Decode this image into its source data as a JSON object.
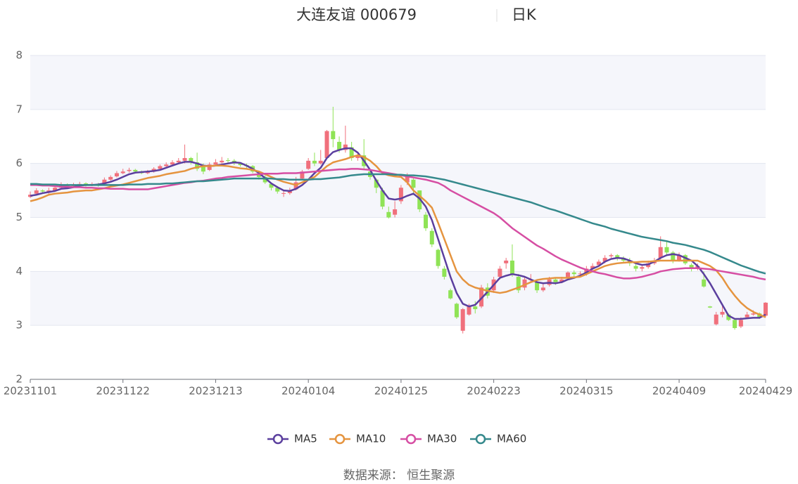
{
  "chart_data": {
    "type": "candlestick",
    "title": "大连友谊 000679",
    "period": "日K",
    "source": "数据来源：  恒生聚源",
    "categories": [
      "20231101",
      null,
      null,
      null,
      null,
      null,
      null,
      null,
      null,
      null,
      null,
      null,
      null,
      null,
      null,
      "20231122",
      null,
      null,
      null,
      null,
      null,
      null,
      null,
      null,
      null,
      null,
      null,
      null,
      null,
      null,
      "20231213",
      null,
      null,
      null,
      null,
      null,
      null,
      null,
      null,
      null,
      null,
      null,
      null,
      null,
      null,
      "20240104",
      null,
      null,
      null,
      null,
      null,
      null,
      null,
      null,
      null,
      null,
      null,
      null,
      null,
      null,
      "20240125",
      null,
      null,
      null,
      null,
      null,
      null,
      null,
      null,
      null,
      null,
      null,
      null,
      null,
      null,
      "20240223",
      null,
      null,
      null,
      null,
      null,
      null,
      null,
      null,
      null,
      null,
      null,
      null,
      null,
      null,
      "20240315",
      null,
      null,
      null,
      null,
      null,
      null,
      null,
      null,
      null,
      null,
      null,
      null,
      null,
      null,
      "20240409",
      null,
      null,
      null,
      null,
      null,
      null,
      null,
      null,
      null,
      null,
      null,
      null,
      null,
      "20240429"
    ],
    "values": [
      [
        5.38,
        5.42,
        5.36,
        5.48
      ],
      [
        5.44,
        5.5,
        5.42,
        5.54
      ],
      [
        5.5,
        5.48,
        5.45,
        5.52
      ],
      [
        5.46,
        5.5,
        5.44,
        5.55
      ],
      [
        5.5,
        5.55,
        5.48,
        5.6
      ],
      [
        5.55,
        5.6,
        5.52,
        5.65
      ],
      [
        5.6,
        5.58,
        5.55,
        5.63
      ],
      [
        5.58,
        5.6,
        5.55,
        5.64
      ],
      [
        5.6,
        5.62,
        5.57,
        5.66
      ],
      [
        5.63,
        5.6,
        5.57,
        5.65
      ],
      [
        5.6,
        5.62,
        5.58,
        5.65
      ],
      [
        5.62,
        5.6,
        5.57,
        5.64
      ],
      [
        5.62,
        5.7,
        5.6,
        5.74
      ],
      [
        5.7,
        5.75,
        5.68,
        5.78
      ],
      [
        5.76,
        5.82,
        5.74,
        5.86
      ],
      [
        5.82,
        5.85,
        5.8,
        5.9
      ],
      [
        5.86,
        5.88,
        5.83,
        5.92
      ],
      [
        5.88,
        5.85,
        5.82,
        5.9
      ],
      [
        5.85,
        5.82,
        5.8,
        5.87
      ],
      [
        5.82,
        5.85,
        5.8,
        5.88
      ],
      [
        5.85,
        5.9,
        5.83,
        5.93
      ],
      [
        5.9,
        5.95,
        5.88,
        5.98
      ],
      [
        5.95,
        5.98,
        5.92,
        6.02
      ],
      [
        5.98,
        6.02,
        5.95,
        6.06
      ],
      [
        6.02,
        6.05,
        6.0,
        6.1
      ],
      [
        6.05,
        6.1,
        6.0,
        6.35
      ],
      [
        6.1,
        6.02,
        5.98,
        6.12
      ],
      [
        6.02,
        5.9,
        5.86,
        6.2
      ],
      [
        5.95,
        5.85,
        5.8,
        6.0
      ],
      [
        5.88,
        5.98,
        5.86,
        6.02
      ],
      [
        5.98,
        6.02,
        5.95,
        6.08
      ],
      [
        6.02,
        6.05,
        6.0,
        6.12
      ],
      [
        6.06,
        6.05,
        6.0,
        6.1
      ],
      [
        6.05,
        6.0,
        5.97,
        6.08
      ],
      [
        6.0,
        5.97,
        5.94,
        6.02
      ],
      [
        5.97,
        5.95,
        5.9,
        6.0
      ],
      [
        5.95,
        5.85,
        5.82,
        5.97
      ],
      [
        5.8,
        5.75,
        5.7,
        5.82
      ],
      [
        5.75,
        5.65,
        5.62,
        5.78
      ],
      [
        5.62,
        5.55,
        5.5,
        5.65
      ],
      [
        5.55,
        5.48,
        5.44,
        5.58
      ],
      [
        5.45,
        5.45,
        5.38,
        5.5
      ],
      [
        5.45,
        5.5,
        5.42,
        5.55
      ],
      [
        5.52,
        5.65,
        5.5,
        5.75
      ],
      [
        5.72,
        5.85,
        5.7,
        5.88
      ],
      [
        5.9,
        6.05,
        5.88,
        6.1
      ],
      [
        6.05,
        6.0,
        5.95,
        6.2
      ],
      [
        6.0,
        6.05,
        5.98,
        6.25
      ],
      [
        6.1,
        6.6,
        6.1,
        6.62
      ],
      [
        6.6,
        6.45,
        6.3,
        7.05
      ],
      [
        6.4,
        6.25,
        6.2,
        6.5
      ],
      [
        6.25,
        6.35,
        6.2,
        6.7
      ],
      [
        6.3,
        6.1,
        6.05,
        6.4
      ],
      [
        6.1,
        6.15,
        6.05,
        6.2
      ],
      [
        6.15,
        5.95,
        5.9,
        6.45
      ],
      [
        5.85,
        5.75,
        5.7,
        5.9
      ],
      [
        5.7,
        5.55,
        5.45,
        5.72
      ],
      [
        5.5,
        5.2,
        5.15,
        5.55
      ],
      [
        5.1,
        5.0,
        4.98,
        5.2
      ],
      [
        5.05,
        5.15,
        5.0,
        5.3
      ],
      [
        5.3,
        5.55,
        5.25,
        5.6
      ],
      [
        5.65,
        5.75,
        5.6,
        5.82
      ],
      [
        5.7,
        5.55,
        5.45,
        5.72
      ],
      [
        5.5,
        5.15,
        5.1,
        5.5
      ],
      [
        5.05,
        4.8,
        4.75,
        5.1
      ],
      [
        4.75,
        4.5,
        4.45,
        4.8
      ],
      [
        4.4,
        4.1,
        4.05,
        4.42
      ],
      [
        4.05,
        3.9,
        3.85,
        4.1
      ],
      [
        3.65,
        3.5,
        3.48,
        3.68
      ],
      [
        3.4,
        3.15,
        3.12,
        3.42
      ],
      [
        2.9,
        3.3,
        2.85,
        3.32
      ],
      [
        3.2,
        3.35,
        3.18,
        3.4
      ],
      [
        3.35,
        3.3,
        3.22,
        3.45
      ],
      [
        3.35,
        3.7,
        3.32,
        3.75
      ],
      [
        3.7,
        3.55,
        3.5,
        3.78
      ],
      [
        3.65,
        3.85,
        3.6,
        3.9
      ],
      [
        3.9,
        4.05,
        3.85,
        4.1
      ],
      [
        4.15,
        4.2,
        4.05,
        4.25
      ],
      [
        4.2,
        3.95,
        3.9,
        4.5
      ],
      [
        3.9,
        3.65,
        3.6,
        3.95
      ],
      [
        3.7,
        3.85,
        3.65,
        3.9
      ],
      [
        3.85,
        3.85,
        3.8,
        3.95
      ],
      [
        3.8,
        3.65,
        3.6,
        3.85
      ],
      [
        3.65,
        3.7,
        3.62,
        3.78
      ],
      [
        3.75,
        3.85,
        3.72,
        3.9
      ],
      [
        3.85,
        3.8,
        3.75,
        3.88
      ],
      [
        3.8,
        3.85,
        3.78,
        3.9
      ],
      [
        3.88,
        3.98,
        3.85,
        4.0
      ],
      [
        3.98,
        3.95,
        3.9,
        4.02
      ],
      [
        3.95,
        3.96,
        3.92,
        4.0
      ],
      [
        3.96,
        4.05,
        3.92,
        4.1
      ],
      [
        4.05,
        4.1,
        4.02,
        4.15
      ],
      [
        4.12,
        4.18,
        4.1,
        4.22
      ],
      [
        4.18,
        4.25,
        4.15,
        4.3
      ],
      [
        4.28,
        4.3,
        4.25,
        4.33
      ],
      [
        4.3,
        4.25,
        4.2,
        4.32
      ],
      [
        4.25,
        4.2,
        4.15,
        4.28
      ],
      [
        4.2,
        4.15,
        4.1,
        4.25
      ],
      [
        4.1,
        4.05,
        4.0,
        4.15
      ],
      [
        4.05,
        4.08,
        4.0,
        4.12
      ],
      [
        4.08,
        4.15,
        4.05,
        4.2
      ],
      [
        4.15,
        4.2,
        4.12,
        4.25
      ],
      [
        4.25,
        4.45,
        4.22,
        4.65
      ],
      [
        4.45,
        4.35,
        4.3,
        4.55
      ],
      [
        4.35,
        4.2,
        4.15,
        4.38
      ],
      [
        4.2,
        4.3,
        4.18,
        4.35
      ],
      [
        4.3,
        4.15,
        4.12,
        4.32
      ],
      [
        4.12,
        4.05,
        4.0,
        4.15
      ],
      [
        4.05,
        4.1,
        4.02,
        4.15
      ],
      [
        3.85,
        3.72,
        3.7,
        4.0
      ],
      [
        3.35,
        3.33,
        3.32,
        3.36
      ],
      [
        3.02,
        3.2,
        3.0,
        3.25
      ],
      [
        3.2,
        3.25,
        3.15,
        3.38
      ],
      [
        3.2,
        3.1,
        3.08,
        3.22
      ],
      [
        3.1,
        2.95,
        2.92,
        3.12
      ],
      [
        2.98,
        3.1,
        2.95,
        3.15
      ],
      [
        3.15,
        3.2,
        3.12,
        3.25
      ],
      [
        3.2,
        3.22,
        3.18,
        3.28
      ],
      [
        3.22,
        3.15,
        3.12,
        3.24
      ],
      [
        3.18,
        3.42,
        3.15,
        3.43
      ]
    ],
    "up_color": "#f0707c",
    "down_color": "#8fe356",
    "series": [
      {
        "name": "MA5",
        "color": "#5b3f9e",
        "values": [
          5.4,
          5.42,
          5.45,
          5.47,
          5.49,
          5.53,
          5.54,
          5.56,
          5.59,
          5.6,
          5.6,
          5.61,
          5.63,
          5.66,
          5.7,
          5.75,
          5.8,
          5.83,
          5.84,
          5.85,
          5.86,
          5.88,
          5.92,
          5.96,
          6.0,
          6.03,
          6.03,
          6.0,
          5.96,
          5.95,
          5.96,
          5.98,
          6.0,
          6.02,
          6.01,
          5.96,
          5.9,
          5.82,
          5.73,
          5.63,
          5.56,
          5.5,
          5.49,
          5.53,
          5.6,
          5.7,
          5.82,
          5.92,
          6.1,
          6.21,
          6.25,
          6.28,
          6.28,
          6.2,
          6.05,
          5.88,
          5.68,
          5.5,
          5.35,
          5.33,
          5.35,
          5.4,
          5.44,
          5.35,
          5.2,
          4.95,
          4.6,
          4.25,
          3.9,
          3.6,
          3.4,
          3.35,
          3.38,
          3.5,
          3.62,
          3.75,
          3.88,
          3.92,
          3.95,
          3.93,
          3.9,
          3.85,
          3.8,
          3.78,
          3.79,
          3.78,
          3.8,
          3.85,
          3.88,
          3.92,
          3.98,
          4.05,
          4.1,
          4.18,
          4.23,
          4.25,
          4.24,
          4.2,
          4.15,
          4.12,
          4.13,
          4.18,
          4.25,
          4.3,
          4.32,
          4.3,
          4.25,
          4.2,
          4.1,
          3.95,
          3.78,
          3.58,
          3.38,
          3.18,
          3.12,
          3.12,
          3.13,
          3.14,
          3.14,
          3.2
        ]
      },
      {
        "name": "MA10",
        "color": "#e5943f",
        "values": [
          5.3,
          5.33,
          5.37,
          5.42,
          5.44,
          5.45,
          5.46,
          5.48,
          5.49,
          5.5,
          5.5,
          5.52,
          5.54,
          5.57,
          5.59,
          5.61,
          5.64,
          5.67,
          5.7,
          5.73,
          5.75,
          5.77,
          5.8,
          5.82,
          5.84,
          5.86,
          5.9,
          5.93,
          5.95,
          5.95,
          5.96,
          5.96,
          5.95,
          5.93,
          5.91,
          5.9,
          5.88,
          5.85,
          5.8,
          5.75,
          5.7,
          5.66,
          5.63,
          5.6,
          5.65,
          5.7,
          5.75,
          5.85,
          5.95,
          6.02,
          6.05,
          6.08,
          6.12,
          6.15,
          6.12,
          6.05,
          5.95,
          5.82,
          5.78,
          5.76,
          5.75,
          5.65,
          5.5,
          5.4,
          5.3,
          5.18,
          4.9,
          4.6,
          4.3,
          4.0,
          3.85,
          3.75,
          3.7,
          3.67,
          3.64,
          3.62,
          3.6,
          3.62,
          3.66,
          3.7,
          3.75,
          3.8,
          3.84,
          3.86,
          3.87,
          3.88,
          3.88,
          3.88,
          3.89,
          3.9,
          3.95,
          4.0,
          4.05,
          4.1,
          4.13,
          4.15,
          4.16,
          4.17,
          4.17,
          4.18,
          4.18,
          4.19,
          4.2,
          4.2,
          4.2,
          4.2,
          4.2,
          4.2,
          4.2,
          4.15,
          4.1,
          4.02,
          3.88,
          3.7,
          3.55,
          3.42,
          3.32,
          3.25,
          3.2,
          3.15
        ]
      },
      {
        "name": "MA30",
        "color": "#d64ea3",
        "values": [
          5.6,
          5.6,
          5.59,
          5.59,
          5.58,
          5.57,
          5.57,
          5.56,
          5.56,
          5.55,
          5.55,
          5.54,
          5.54,
          5.53,
          5.53,
          5.53,
          5.52,
          5.52,
          5.52,
          5.52,
          5.54,
          5.56,
          5.58,
          5.6,
          5.62,
          5.64,
          5.65,
          5.67,
          5.68,
          5.7,
          5.72,
          5.73,
          5.75,
          5.76,
          5.77,
          5.78,
          5.79,
          5.8,
          5.81,
          5.81,
          5.81,
          5.82,
          5.82,
          5.82,
          5.83,
          5.84,
          5.85,
          5.86,
          5.87,
          5.88,
          5.89,
          5.89,
          5.9,
          5.9,
          5.89,
          5.88,
          5.86,
          5.84,
          5.82,
          5.8,
          5.78,
          5.76,
          5.74,
          5.72,
          5.7,
          5.67,
          5.64,
          5.58,
          5.5,
          5.44,
          5.38,
          5.32,
          5.26,
          5.2,
          5.14,
          5.08,
          5.0,
          4.9,
          4.8,
          4.72,
          4.64,
          4.56,
          4.48,
          4.42,
          4.35,
          4.28,
          4.22,
          4.17,
          4.12,
          4.07,
          4.03,
          4.0,
          3.97,
          3.95,
          3.92,
          3.89,
          3.87,
          3.87,
          3.88,
          3.9,
          3.93,
          3.96,
          4.0,
          4.02,
          4.04,
          4.05,
          4.06,
          4.06,
          4.06,
          4.05,
          4.04,
          4.02,
          4.0,
          3.98,
          3.96,
          3.94,
          3.92,
          3.9,
          3.87,
          3.85
        ]
      },
      {
        "name": "MA60",
        "color": "#35898c",
        "values": [
          5.62,
          5.62,
          5.61,
          5.61,
          5.61,
          5.6,
          5.6,
          5.6,
          5.6,
          5.6,
          5.6,
          5.6,
          5.6,
          5.6,
          5.6,
          5.6,
          5.61,
          5.61,
          5.61,
          5.62,
          5.62,
          5.62,
          5.63,
          5.63,
          5.64,
          5.65,
          5.66,
          5.67,
          5.67,
          5.68,
          5.69,
          5.7,
          5.71,
          5.72,
          5.72,
          5.72,
          5.72,
          5.72,
          5.72,
          5.72,
          5.71,
          5.71,
          5.7,
          5.7,
          5.7,
          5.7,
          5.71,
          5.71,
          5.72,
          5.73,
          5.74,
          5.76,
          5.78,
          5.79,
          5.8,
          5.8,
          5.8,
          5.8,
          5.8,
          5.79,
          5.79,
          5.78,
          5.78,
          5.77,
          5.76,
          5.74,
          5.72,
          5.7,
          5.67,
          5.64,
          5.61,
          5.58,
          5.55,
          5.52,
          5.49,
          5.46,
          5.43,
          5.4,
          5.37,
          5.34,
          5.31,
          5.28,
          5.24,
          5.2,
          5.16,
          5.13,
          5.09,
          5.05,
          5.01,
          4.97,
          4.93,
          4.89,
          4.86,
          4.83,
          4.79,
          4.76,
          4.73,
          4.7,
          4.67,
          4.64,
          4.62,
          4.6,
          4.58,
          4.56,
          4.53,
          4.51,
          4.49,
          4.46,
          4.43,
          4.4,
          4.36,
          4.31,
          4.26,
          4.21,
          4.16,
          4.11,
          4.07,
          4.03,
          3.99,
          3.96
        ]
      }
    ],
    "ylim": [
      2,
      8
    ],
    "yticks": [
      2,
      3,
      4,
      5,
      6,
      7,
      8
    ],
    "grid": true
  }
}
